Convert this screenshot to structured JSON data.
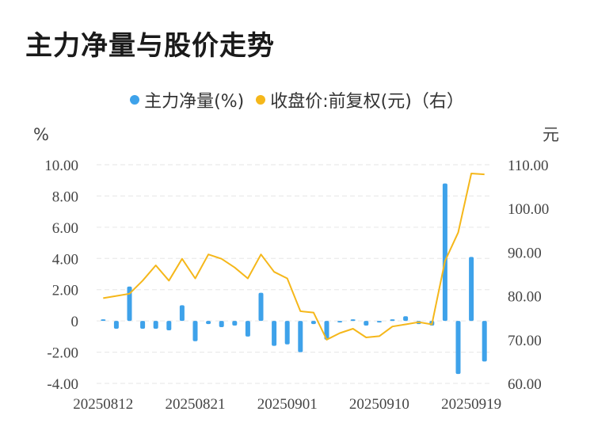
{
  "title": "主力净量与股价走势",
  "legend": {
    "series1": "主力净量(%)",
    "series2": "收盘价:前复权(元)（右）"
  },
  "colors": {
    "bar": "#3ea2ea",
    "line": "#f5b71a",
    "grid": "#e6e6e6"
  },
  "chart_data": {
    "type": "bar+line",
    "left_unit": "%",
    "right_unit": "元",
    "left_ticks": [
      "10.00",
      "8.00",
      "6.00",
      "4.00",
      "2.00",
      "0",
      "-2.00",
      "-4.00"
    ],
    "right_ticks": [
      "110.00",
      "100.00",
      "90.00",
      "80.00",
      "70.00",
      "60.00"
    ],
    "x_tick_labels": [
      "20250812",
      "20250821",
      "20250901",
      "20250910",
      "20250919"
    ],
    "ylim_left": [
      -4,
      10
    ],
    "ylim_right": [
      60,
      110
    ],
    "n_points": 30,
    "series": [
      {
        "name": "主力净量(%)",
        "kind": "bar",
        "axis": "left",
        "values": [
          0.1,
          -0.5,
          2.2,
          -0.5,
          -0.5,
          -0.6,
          1.0,
          -1.3,
          -0.2,
          -0.4,
          -0.3,
          -1.0,
          1.8,
          -1.6,
          -1.5,
          -2.0,
          -0.2,
          -1.2,
          -0.1,
          0.1,
          -0.3,
          -0.1,
          0.1,
          0.3,
          -0.2,
          -0.3,
          8.8,
          -3.4,
          4.1,
          -2.6
        ]
      },
      {
        "name": "收盘价:前复权(元)（右）",
        "kind": "line",
        "axis": "right",
        "values": [
          79.5,
          80.0,
          80.5,
          83.5,
          87.0,
          83.5,
          88.5,
          84.0,
          89.5,
          88.5,
          86.5,
          84.0,
          89.5,
          85.5,
          84.0,
          76.5,
          76.2,
          70.0,
          71.5,
          72.5,
          70.5,
          70.8,
          73.0,
          73.5,
          74.0,
          73.5,
          88.0,
          94.5,
          108.0,
          107.8
        ]
      }
    ]
  }
}
